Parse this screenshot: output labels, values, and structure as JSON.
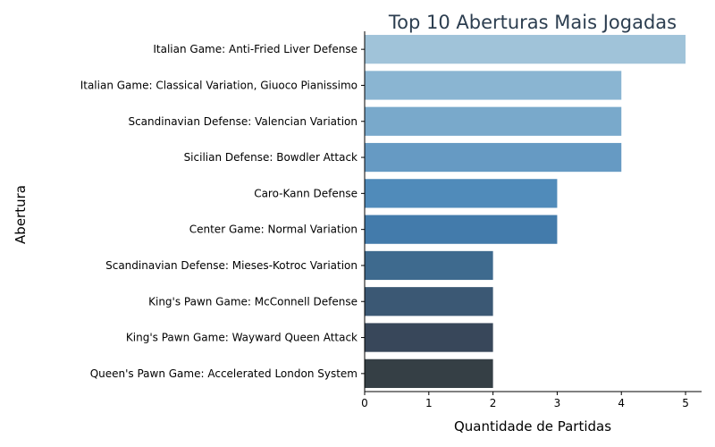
{
  "chart_data": {
    "type": "bar",
    "orientation": "horizontal",
    "title": "Top 10 Aberturas Mais Jogadas",
    "xlabel": "Quantidade de Partidas",
    "ylabel": "Abertura",
    "categories": [
      "Italian Game: Anti-Fried Liver Defense",
      "Italian Game: Classical Variation, Giuoco Pianissimo",
      "Scandinavian Defense: Valencian Variation",
      "Sicilian Defense: Bowdler Attack",
      "Caro-Kann Defense",
      "Center Game: Normal Variation",
      "Scandinavian Defense: Mieses-Kotroc Variation",
      "King's Pawn Game: McConnell Defense",
      "King's Pawn Game: Wayward Queen Attack",
      "Queen's Pawn Game: Accelerated London System"
    ],
    "values": [
      5,
      4,
      4,
      4,
      3,
      3,
      2,
      2,
      2,
      2
    ],
    "xlim": [
      0,
      5.25
    ],
    "xticks": [
      "0",
      "1",
      "2",
      "3",
      "4",
      "5"
    ],
    "grid": false,
    "colors": [
      "#a0c3d9",
      "#8ab5d2",
      "#79a9cb",
      "#669ac3",
      "#508bba",
      "#437bab",
      "#3e6a8e",
      "#3b5874",
      "#38475a",
      "#353f45"
    ]
  }
}
